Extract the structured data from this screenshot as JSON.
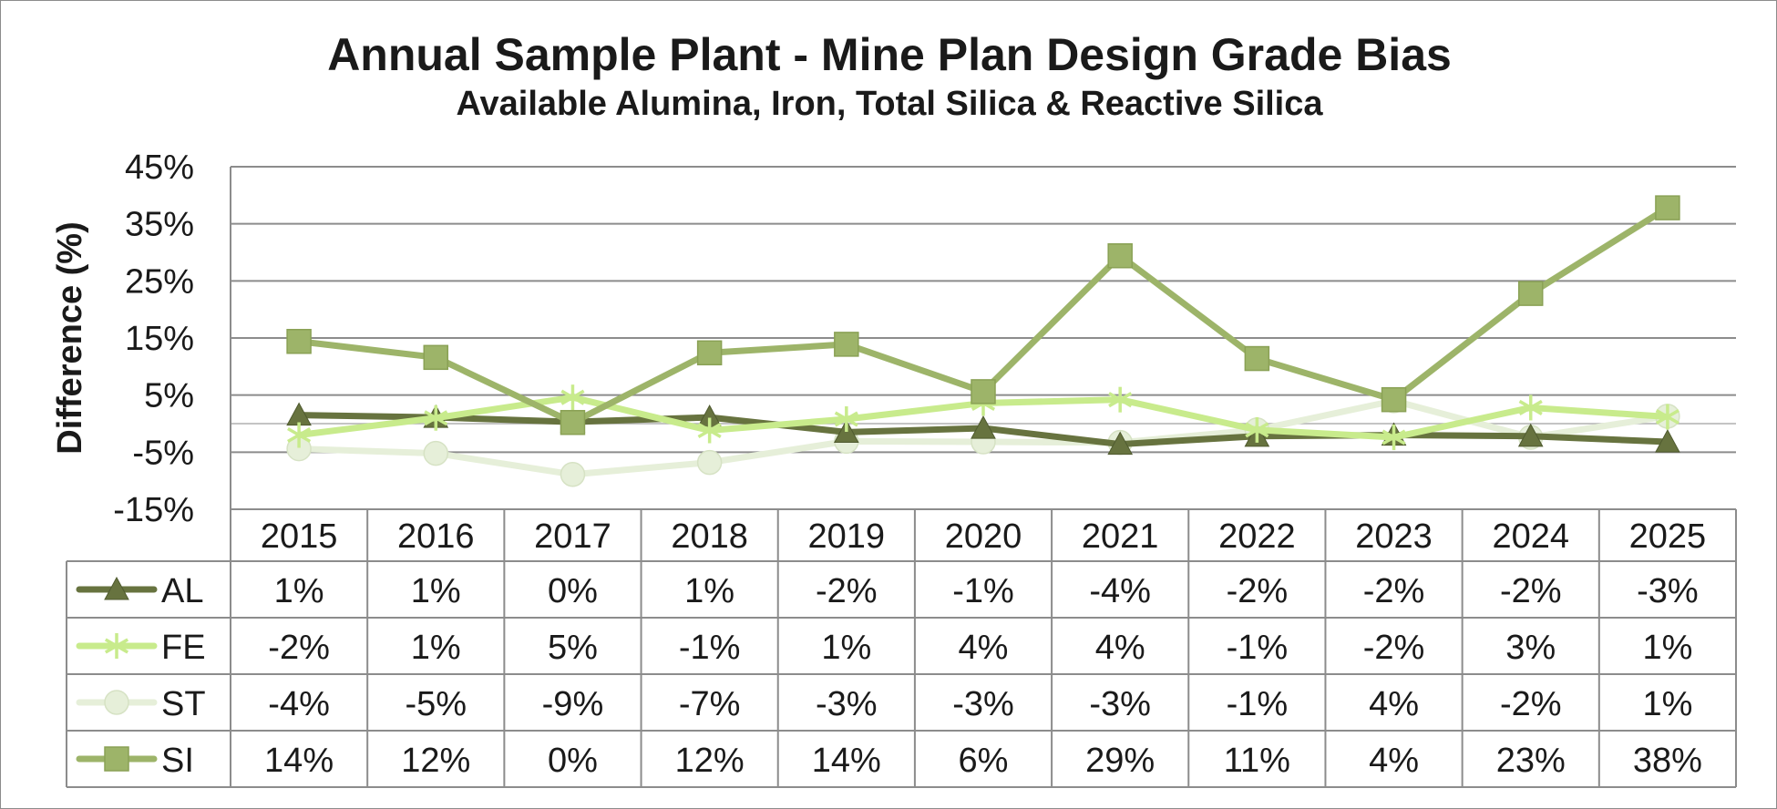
{
  "chart_data": {
    "type": "line",
    "title": "Annual Sample Plant - Mine Plan Design Grade Bias",
    "subtitle": "Available Alumina, Iron, Total Silica & Reactive Silica",
    "xlabel": "",
    "ylabel": "Difference (%)",
    "ylim": [
      -15,
      45
    ],
    "yticks": [
      45,
      35,
      25,
      15,
      5,
      -5,
      -15
    ],
    "ytick_labels": [
      "45%",
      "35%",
      "25%",
      "15%",
      "5%",
      "-5%",
      "-15%"
    ],
    "categories": [
      "2015",
      "2016",
      "2017",
      "2018",
      "2019",
      "2020",
      "2021",
      "2022",
      "2023",
      "2024",
      "2025"
    ],
    "grid": true,
    "legend": "data-table-rows",
    "series": [
      {
        "name": "AL",
        "color": "#67733f",
        "marker": "triangle",
        "values": [
          1.5,
          1.1,
          0.3,
          1.1,
          -1.5,
          -0.8,
          -3.6,
          -2.2,
          -2.0,
          -2.2,
          -3.2
        ],
        "labels": [
          "1%",
          "1%",
          "0%",
          "1%",
          "-2%",
          "-1%",
          "-4%",
          "-2%",
          "-2%",
          "-2%",
          "-3%"
        ]
      },
      {
        "name": "FE",
        "color": "#c8eb8c",
        "marker": "star",
        "values": [
          -2.0,
          1.0,
          4.6,
          -1.2,
          0.8,
          3.6,
          4.2,
          -1.1,
          -2.4,
          2.8,
          1.2
        ],
        "labels": [
          "-2%",
          "1%",
          "5%",
          "-1%",
          "1%",
          "4%",
          "4%",
          "-1%",
          "-2%",
          "3%",
          "1%"
        ]
      },
      {
        "name": "ST",
        "color": "#e6efd9",
        "marker": "circle",
        "values": [
          -4.4,
          -5.2,
          -8.9,
          -6.8,
          -3.1,
          -3.2,
          -3.3,
          -1.1,
          4.0,
          -2.4,
          1.3
        ],
        "labels": [
          "-4%",
          "-5%",
          "-9%",
          "-7%",
          "-3%",
          "-3%",
          "-3%",
          "-1%",
          "4%",
          "-2%",
          "1%"
        ]
      },
      {
        "name": "SI",
        "color": "#9db469",
        "marker": "square",
        "values": [
          14.4,
          11.6,
          0.2,
          12.4,
          13.9,
          5.6,
          29.4,
          11.4,
          4.2,
          22.8,
          37.8
        ],
        "labels": [
          "14%",
          "12%",
          "0%",
          "12%",
          "14%",
          "6%",
          "29%",
          "11%",
          "4%",
          "23%",
          "38%"
        ]
      }
    ]
  }
}
